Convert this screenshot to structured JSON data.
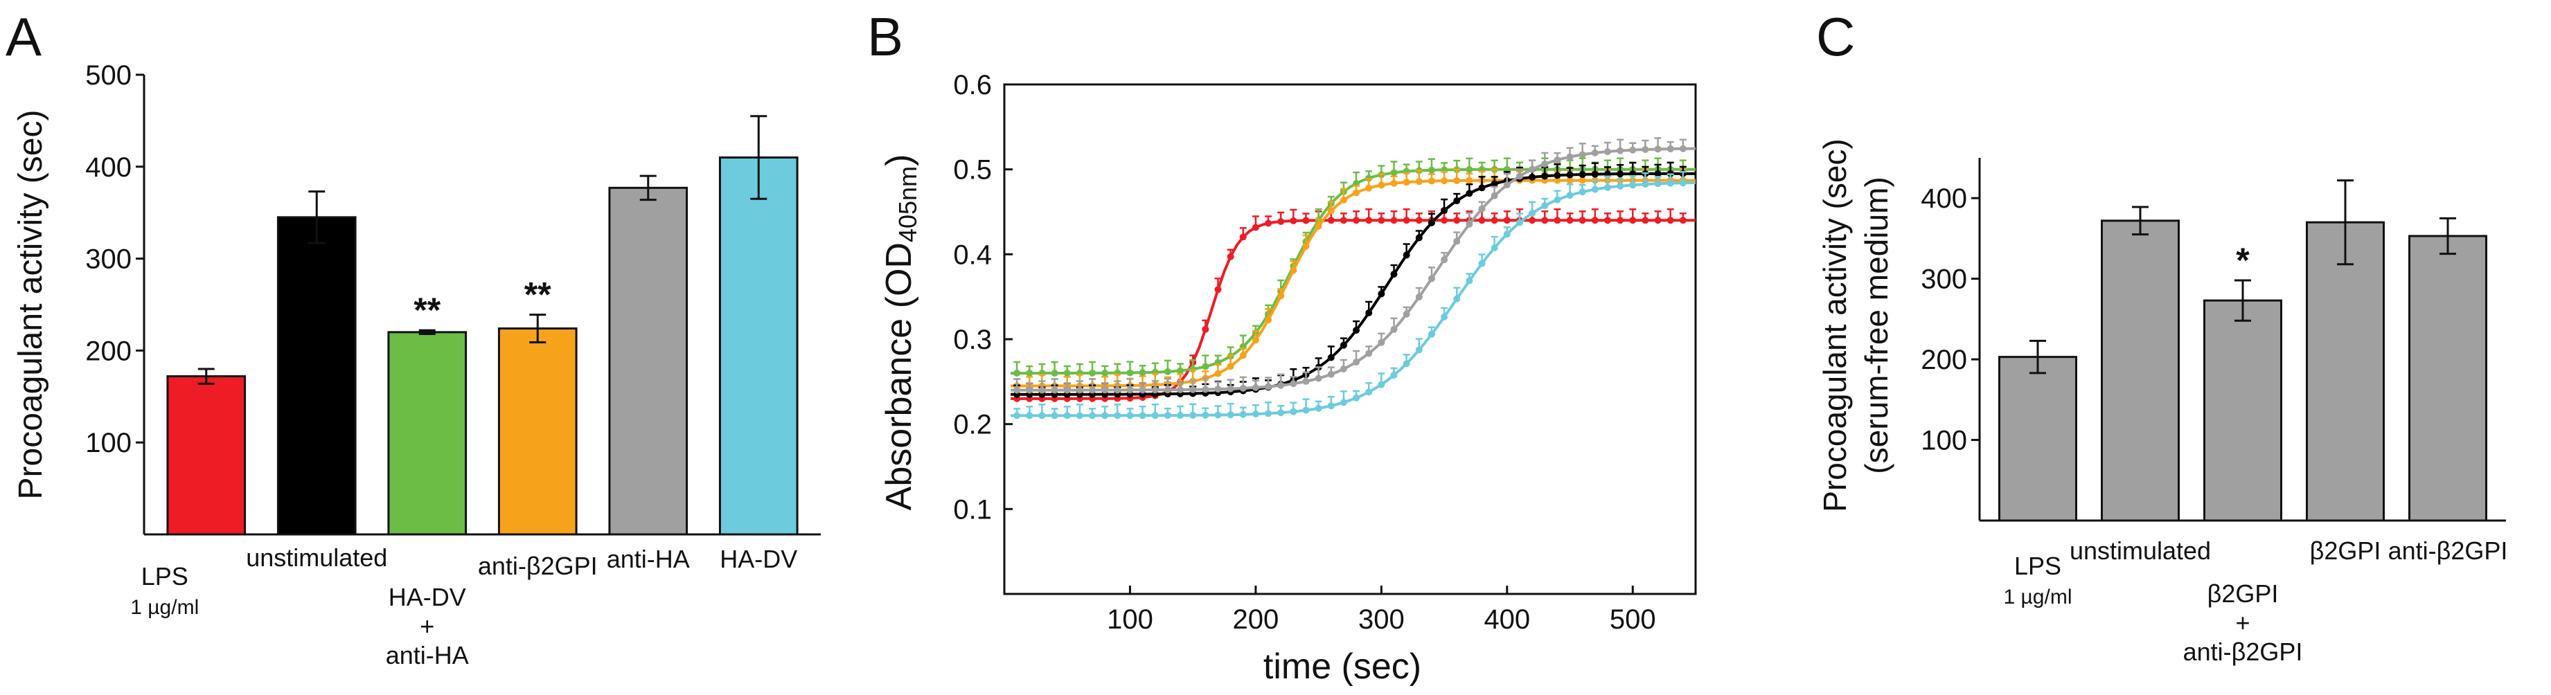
{
  "chart_data": [
    {
      "type": "bar",
      "panel": "A",
      "ylabel": "Procoagulant activity (sec)",
      "ylim": [
        0,
        500
      ],
      "yticks": [
        100,
        200,
        300,
        400,
        500
      ],
      "categories": [
        "LPS 1 µg/ml",
        "unstimulated",
        "HA-DV + anti-HA",
        "anti-β2GPI",
        "anti-HA",
        "HA-DV"
      ],
      "category_lines": [
        [
          "LPS",
          "1 µg/ml"
        ],
        [
          "unstimulated"
        ],
        [
          "HA-DV",
          "+",
          "anti-HA"
        ],
        [
          "anti-β2GPI"
        ],
        [
          "anti-HA"
        ],
        [
          "HA-DV"
        ]
      ],
      "values": [
        172,
        345,
        220,
        224,
        377,
        410
      ],
      "errors": [
        8,
        28,
        2,
        15,
        13,
        45
      ],
      "colors": [
        "#ee1c25",
        "#000000",
        "#6bbd45",
        "#f7a21b",
        "#a0a0a0",
        "#6ccbdd"
      ],
      "significance": [
        "",
        "",
        "**",
        "**",
        "",
        ""
      ]
    },
    {
      "type": "line",
      "panel": "B",
      "ylabel": "Absorbance (OD405nm)",
      "ylabel_parts": [
        "Absorbance (OD",
        "405nm",
        ")"
      ],
      "xlabel": "time (sec)",
      "xlim": [
        0,
        550
      ],
      "ylim": [
        0,
        0.6
      ],
      "xticks": [
        100,
        200,
        300,
        400,
        500
      ],
      "yticks": [
        0.1,
        0.2,
        0.3,
        0.4,
        0.5,
        0.6
      ],
      "series": [
        {
          "name": "LPS",
          "color": "#ee1c25",
          "baseline": 0.23,
          "plateau": 0.44,
          "midpoint": 165,
          "width": 11
        },
        {
          "name": "HA-DV + anti-HA",
          "color": "#6bbd45",
          "baseline": 0.26,
          "plateau": 0.5,
          "midpoint": 228,
          "width": 20
        },
        {
          "name": "anti-β2GPI",
          "color": "#f7a21b",
          "baseline": 0.245,
          "plateau": 0.487,
          "midpoint": 225,
          "width": 20
        },
        {
          "name": "unstimulated",
          "color": "#000000",
          "baseline": 0.235,
          "plateau": 0.495,
          "midpoint": 305,
          "width": 28
        },
        {
          "name": "anti-HA",
          "color": "#a0a0a0",
          "baseline": 0.24,
          "plateau": 0.525,
          "midpoint": 345,
          "width": 32
        },
        {
          "name": "HA-DV",
          "color": "#6ccbdd",
          "baseline": 0.21,
          "plateau": 0.485,
          "midpoint": 360,
          "width": 32
        }
      ]
    },
    {
      "type": "bar",
      "panel": "C",
      "ylabel": "Procoagulant activity (sec)",
      "ylabel2": "(serum-free medium)",
      "ylim": [
        0,
        450
      ],
      "yticks": [
        100,
        200,
        300,
        400
      ],
      "categories": [
        "LPS 1 µg/ml",
        "unstimulated",
        "β2GPI + anti-β2GPI",
        "β2GPI",
        "anti-β2GPI"
      ],
      "category_lines": [
        [
          "LPS",
          "1 µg/ml"
        ],
        [
          "unstimulated"
        ],
        [
          "β2GPI",
          "+",
          "anti-β2GPI"
        ],
        [
          "β2GPI"
        ],
        [
          "anti-β2GPI"
        ]
      ],
      "values": [
        203,
        372,
        273,
        370,
        353
      ],
      "errors": [
        20,
        17,
        25,
        52,
        22
      ],
      "colors": [
        "#a0a0a0",
        "#a0a0a0",
        "#a0a0a0",
        "#a0a0a0",
        "#a0a0a0"
      ],
      "significance": [
        "",
        "",
        "*",
        "",
        ""
      ]
    }
  ],
  "panel_labels": [
    "A",
    "B",
    "C"
  ]
}
